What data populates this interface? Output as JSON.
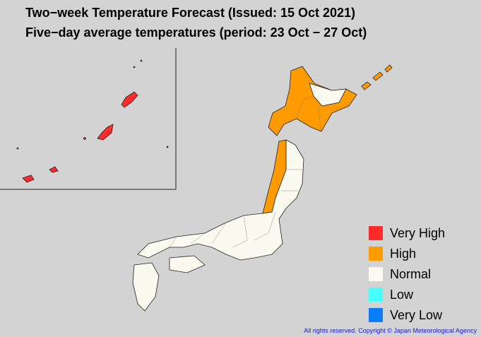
{
  "header": {
    "title": "Two−week Temperature Forecast (Issued: 15 Oct 2021)",
    "subtitle": "Five−day average temperatures (period: 23 Oct − 27 Oct)"
  },
  "legend": [
    {
      "label": "Very High",
      "color": "#ff2a2a"
    },
    {
      "label": "High",
      "color": "#ff9a00"
    },
    {
      "label": "Normal",
      "color": "#fafaf0"
    },
    {
      "label": "Low",
      "color": "#48ffff"
    },
    {
      "label": "Very Low",
      "color": "#0a7dff"
    }
  ],
  "copyright": "All rights reserved. Copyright © Japan Meteorological Agency"
}
